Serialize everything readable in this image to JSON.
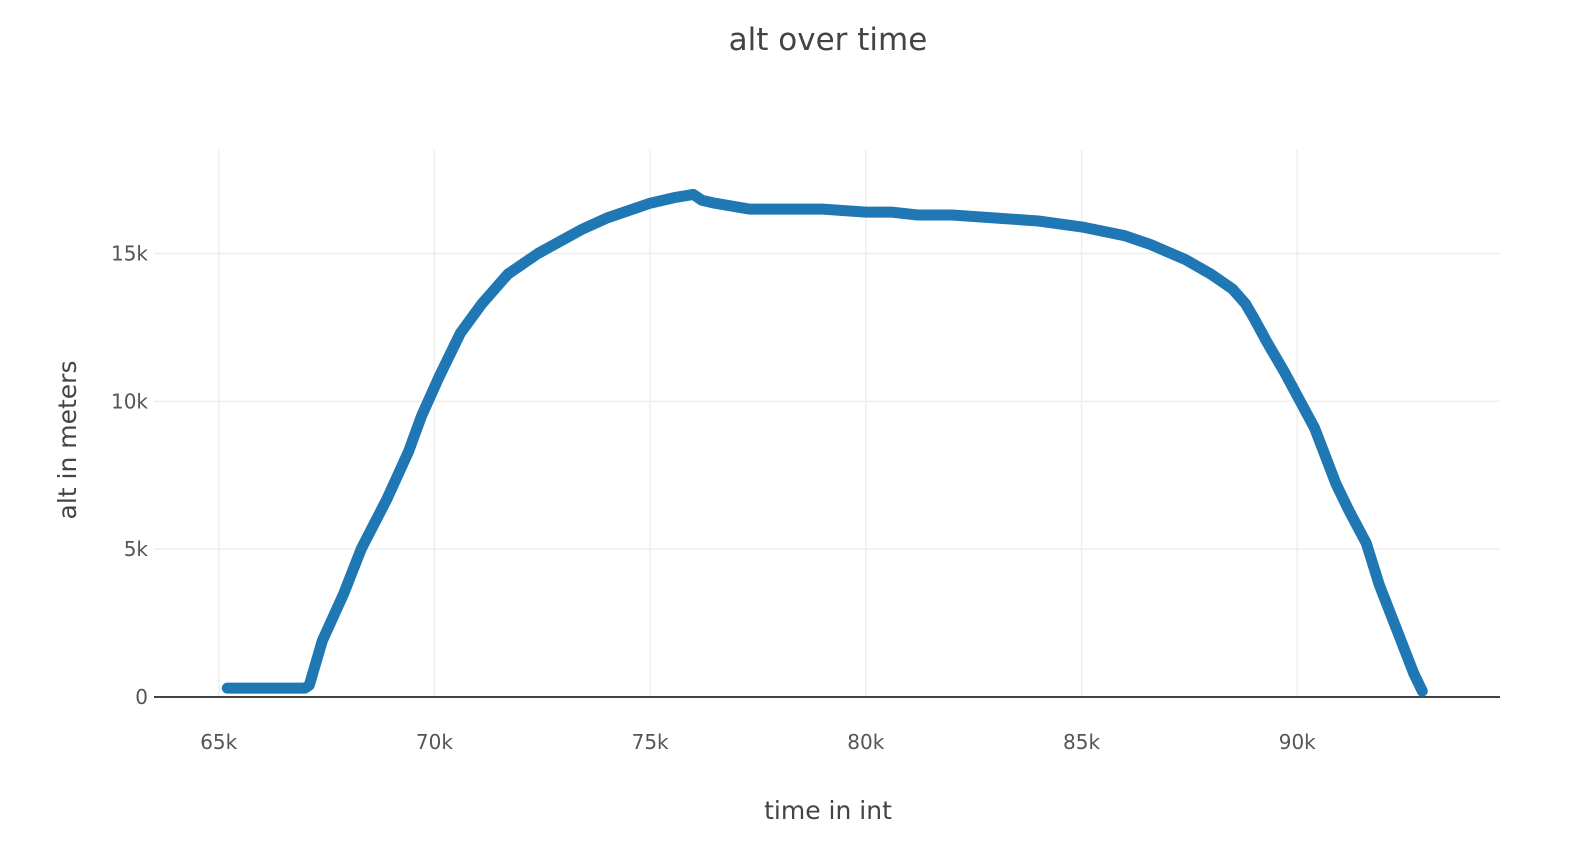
{
  "chart_data": {
    "type": "line",
    "title": "alt over time",
    "xlabel": "time in int",
    "ylabel": "alt in meters",
    "xlim": [
      63500,
      94700
    ],
    "ylim": [
      0,
      18500
    ],
    "x_ticks": [
      {
        "value": 65000,
        "label": "65k"
      },
      {
        "value": 70000,
        "label": "70k"
      },
      {
        "value": 75000,
        "label": "75k"
      },
      {
        "value": 80000,
        "label": "80k"
      },
      {
        "value": 85000,
        "label": "85k"
      },
      {
        "value": 90000,
        "label": "90k"
      }
    ],
    "y_ticks": [
      {
        "value": 0,
        "label": "0"
      },
      {
        "value": 5000,
        "label": "5k"
      },
      {
        "value": 10000,
        "label": "10k"
      },
      {
        "value": 15000,
        "label": "15k"
      }
    ],
    "grid": true,
    "legend": "none",
    "series_color": "#1f77b4",
    "series": [
      {
        "x": [
          65200,
          67000,
          67100,
          67400,
          67900,
          68300,
          68900,
          69400,
          69700,
          70100,
          70600,
          71100,
          71700,
          72400,
          73400,
          74000,
          75000,
          75600,
          76000,
          76200,
          76500,
          77300,
          78000,
          79000,
          80000,
          80600,
          81200,
          82000,
          83000,
          84000,
          85000,
          86000,
          86600,
          87400,
          88000,
          88500,
          88800,
          89000,
          89300,
          89700,
          90400,
          90900,
          91200,
          91600,
          91900,
          92300,
          92700,
          92900
        ],
        "y": [
          300,
          300,
          400,
          1900,
          3500,
          5000,
          6700,
          8300,
          9500,
          10800,
          12300,
          13300,
          14300,
          15000,
          15800,
          16200,
          16700,
          16900,
          17000,
          16800,
          16700,
          16500,
          16500,
          16500,
          16400,
          16400,
          16300,
          16300,
          16200,
          16100,
          15900,
          15600,
          15300,
          14800,
          14300,
          13800,
          13300,
          12800,
          12000,
          11000,
          9100,
          7200,
          6300,
          5200,
          3800,
          2300,
          800,
          200
        ]
      }
    ]
  }
}
